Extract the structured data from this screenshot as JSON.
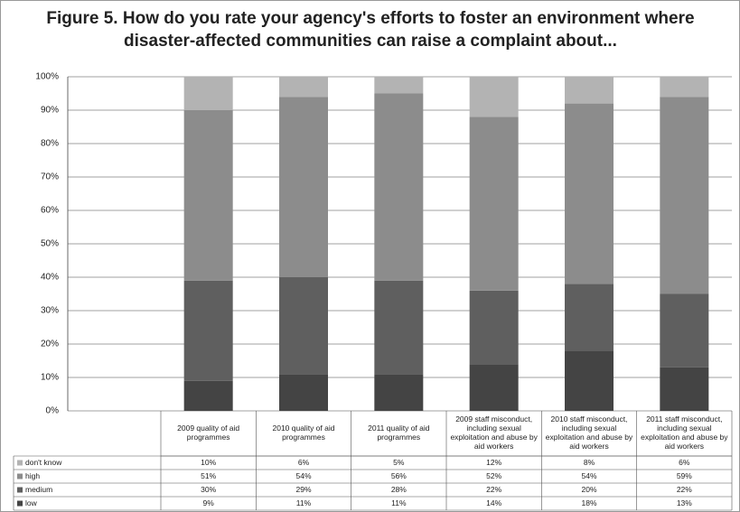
{
  "chart_data": {
    "type": "stacked_bar",
    "title": "Figure 5. How do you rate your agency's efforts to foster an environment where disaster-affected communities can raise a complaint about...",
    "categories": [
      "2009 quality of aid programmes",
      "2010 quality of aid programmes",
      "2011 quality of aid programmes",
      "2009 staff misconduct, including sexual exploitation and abuse by aid workers",
      "2010 staff misconduct, including sexual exploitation and abuse by aid workers",
      "2011 staff misconduct, including sexual exploitation and abuse by aid workers"
    ],
    "series": [
      {
        "name": "don't know",
        "color": "#b3b3b3",
        "values": [
          10,
          6,
          5,
          12,
          8,
          6
        ],
        "value_labels": [
          "10%",
          "6%",
          "5%",
          "12%",
          "8%",
          "6%"
        ]
      },
      {
        "name": "high",
        "color": "#8c8c8c",
        "values": [
          51,
          54,
          56,
          52,
          54,
          59
        ],
        "value_labels": [
          "51%",
          "54%",
          "56%",
          "52%",
          "54%",
          "59%"
        ]
      },
      {
        "name": "medium",
        "color": "#5f5f5f",
        "values": [
          30,
          29,
          28,
          22,
          20,
          22
        ],
        "value_labels": [
          "30%",
          "29%",
          "28%",
          "22%",
          "20%",
          "22%"
        ]
      },
      {
        "name": "low",
        "color": "#444444",
        "values": [
          9,
          11,
          11,
          14,
          18,
          13
        ],
        "value_labels": [
          "9%",
          "11%",
          "11%",
          "14%",
          "18%",
          "13%"
        ]
      }
    ],
    "ylim": [
      0,
      100
    ],
    "yticks": [
      {
        "value": 0,
        "label": "0%"
      },
      {
        "value": 10,
        "label": "10%"
      },
      {
        "value": 20,
        "label": "20%"
      },
      {
        "value": 30,
        "label": "30%"
      },
      {
        "value": 40,
        "label": "40%"
      },
      {
        "value": 50,
        "label": "50%"
      },
      {
        "value": 60,
        "label": "60%"
      },
      {
        "value": 70,
        "label": "70%"
      },
      {
        "value": 80,
        "label": "80%"
      },
      {
        "value": 90,
        "label": "90%"
      },
      {
        "value": 100,
        "label": "100%"
      }
    ],
    "grid": true
  }
}
